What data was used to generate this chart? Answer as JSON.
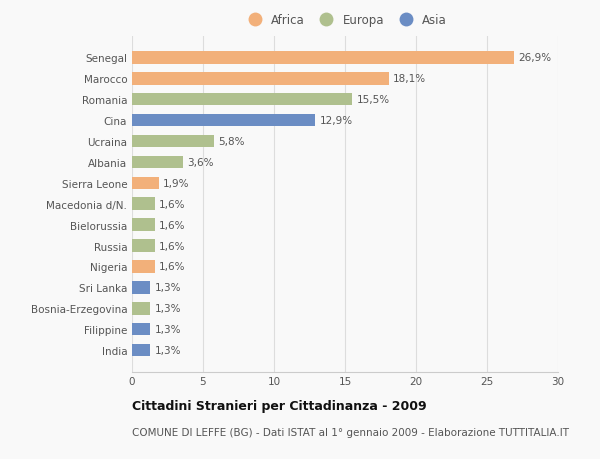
{
  "categories": [
    "India",
    "Filippine",
    "Bosnia-Erzegovina",
    "Sri Lanka",
    "Nigeria",
    "Russia",
    "Bielorussia",
    "Macedonia d/N.",
    "Sierra Leone",
    "Albania",
    "Ucraina",
    "Cina",
    "Romania",
    "Marocco",
    "Senegal"
  ],
  "values": [
    1.3,
    1.3,
    1.3,
    1.3,
    1.6,
    1.6,
    1.6,
    1.6,
    1.9,
    3.6,
    5.8,
    12.9,
    15.5,
    18.1,
    26.9
  ],
  "colors": [
    "#6b8dc4",
    "#6b8dc4",
    "#afc08e",
    "#6b8dc4",
    "#f2b07a",
    "#afc08e",
    "#afc08e",
    "#afc08e",
    "#f2b07a",
    "#afc08e",
    "#afc08e",
    "#6b8dc4",
    "#afc08e",
    "#f2b07a",
    "#f2b07a"
  ],
  "labels": [
    "1,3%",
    "1,3%",
    "1,3%",
    "1,3%",
    "1,6%",
    "1,6%",
    "1,6%",
    "1,6%",
    "1,9%",
    "3,6%",
    "5,8%",
    "12,9%",
    "15,5%",
    "18,1%",
    "26,9%"
  ],
  "legend_labels": [
    "Africa",
    "Europa",
    "Asia"
  ],
  "legend_colors": [
    "#f2b07a",
    "#afc08e",
    "#6b8dc4"
  ],
  "title": "Cittadini Stranieri per Cittadinanza - 2009",
  "subtitle": "COMUNE DI LEFFE (BG) - Dati ISTAT al 1° gennaio 2009 - Elaborazione TUTTITALIA.IT",
  "xlim": [
    0,
    30
  ],
  "xticks": [
    0,
    5,
    10,
    15,
    20,
    25,
    30
  ],
  "background_color": "#f9f9f9",
  "bar_height": 0.6,
  "title_fontsize": 9,
  "subtitle_fontsize": 7.5,
  "label_fontsize": 7.5,
  "tick_fontsize": 7.5,
  "legend_fontsize": 8.5
}
